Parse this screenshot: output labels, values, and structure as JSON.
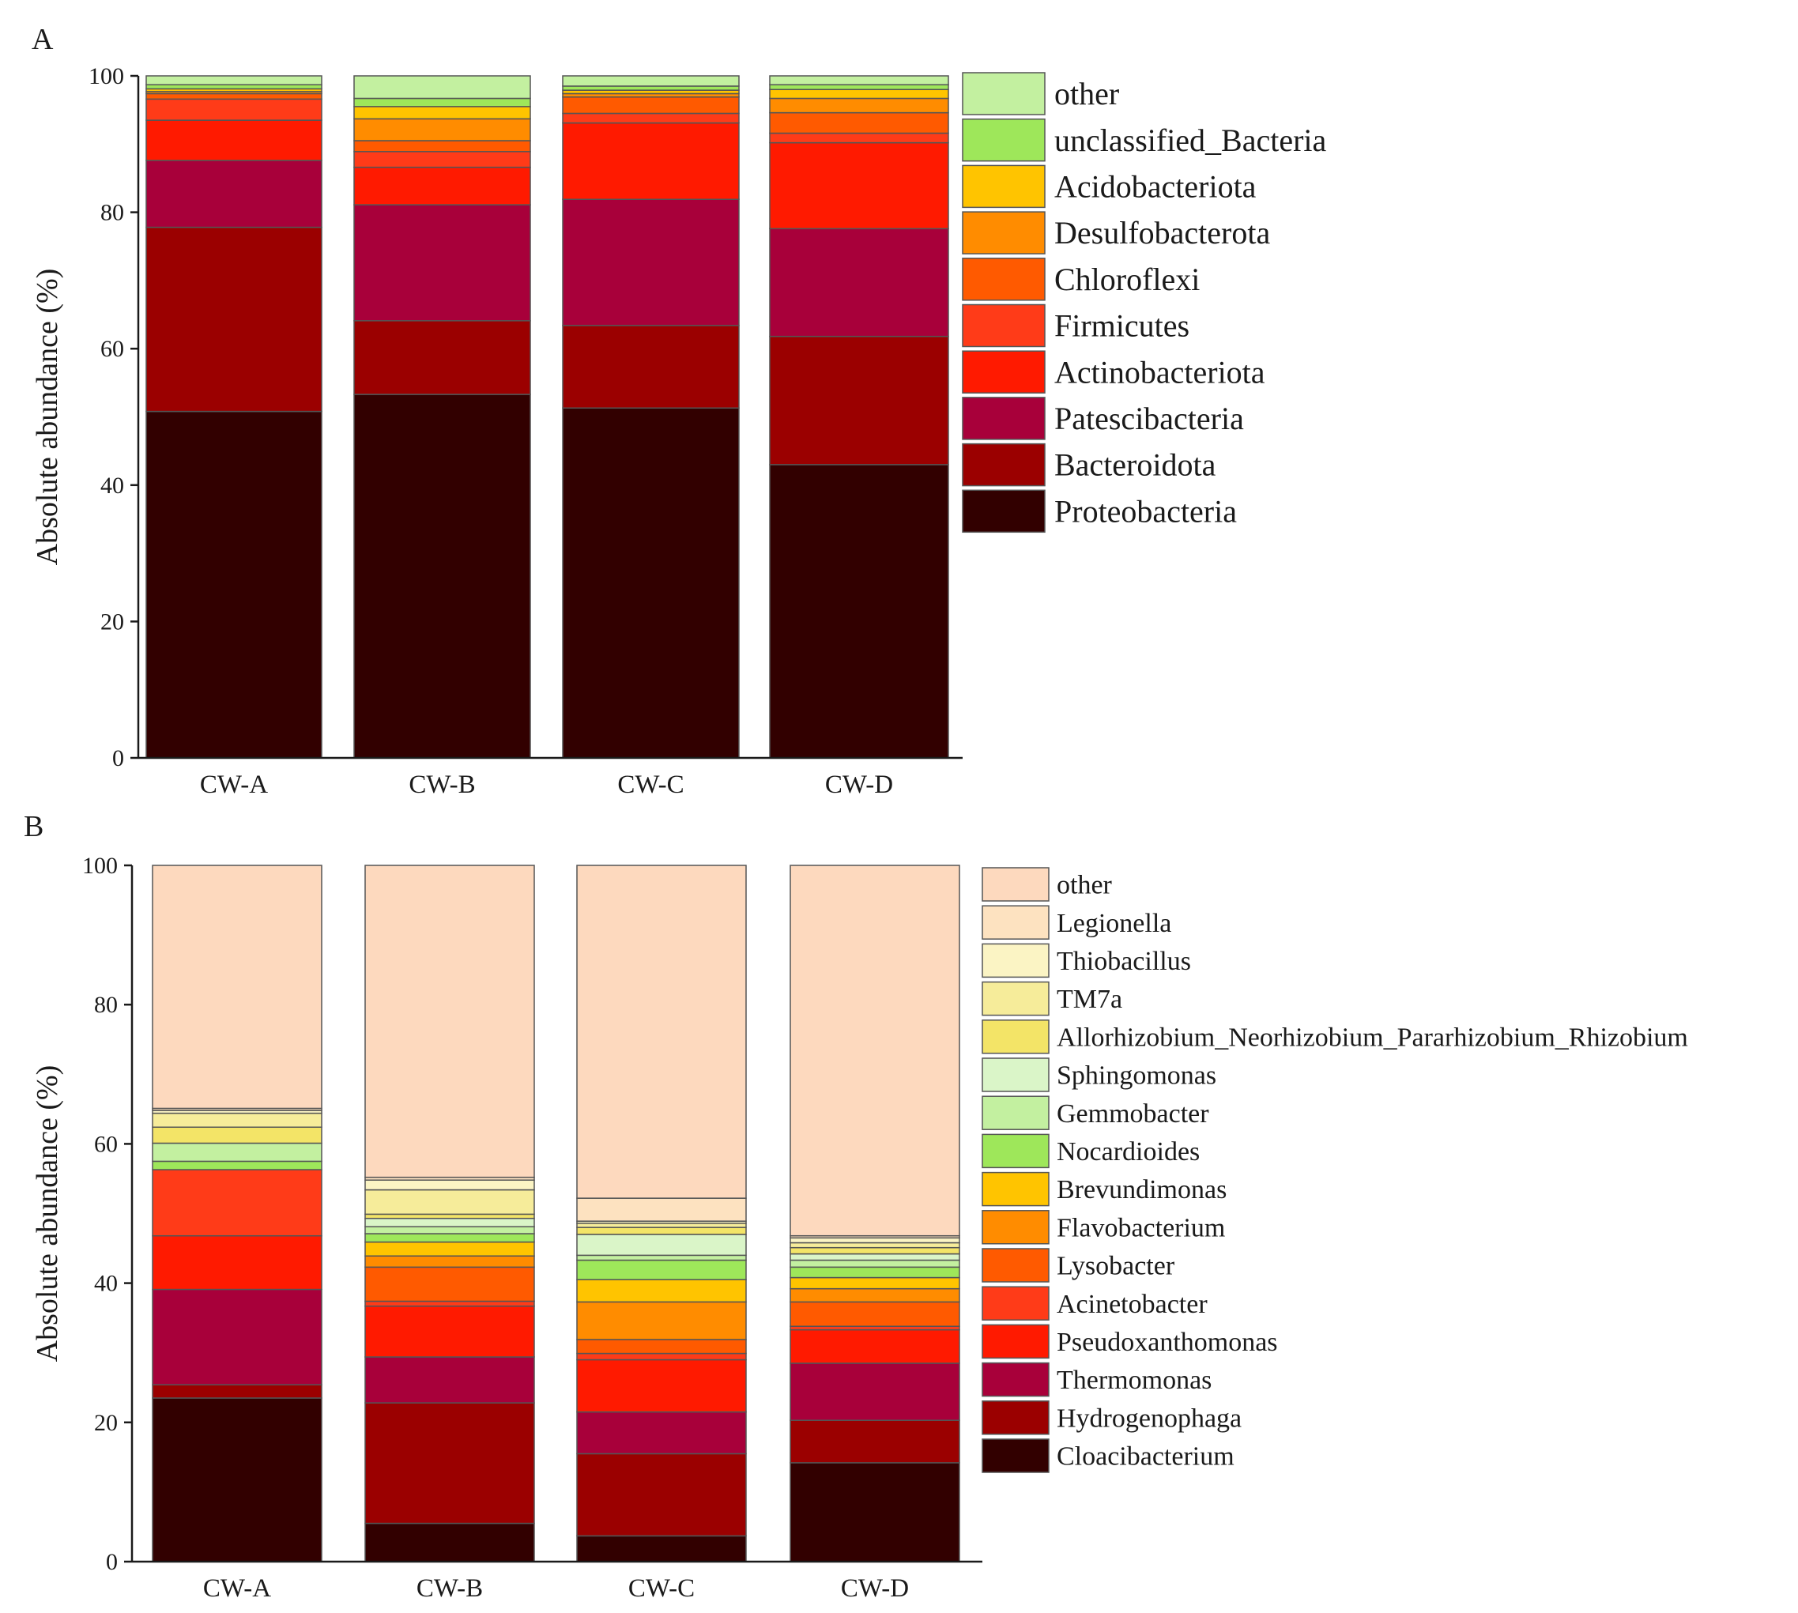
{
  "chart_data": [
    {
      "panel": "A",
      "type": "bar",
      "stacked": true,
      "title": "",
      "ylabel": "Absolute abundance (%)",
      "xlabel": "",
      "ylim": [
        0,
        100
      ],
      "yticks": [
        "0",
        "20",
        "40",
        "60",
        "80",
        "100"
      ],
      "legend_position": "right",
      "grid": false,
      "categories": [
        "CW-A",
        "CW-B",
        "CW-C",
        "CW-D"
      ],
      "series": [
        {
          "name": "Proteobacteria",
          "color": "#320000",
          "values": [
            50.8,
            53.3,
            51.3,
            43.0
          ]
        },
        {
          "name": "Bacteroidota",
          "color": "#9b0000",
          "values": [
            27.0,
            10.8,
            12.1,
            18.8
          ]
        },
        {
          "name": "Patescibacteria",
          "color": "#a8003a",
          "values": [
            9.8,
            17.0,
            18.5,
            15.8
          ]
        },
        {
          "name": "Actinobacteriota",
          "color": "#ff1a00",
          "values": [
            5.9,
            5.5,
            11.2,
            12.6
          ]
        },
        {
          "name": "Firmicutes",
          "color": "#ff3b18",
          "values": [
            3.1,
            2.3,
            1.4,
            1.4
          ]
        },
        {
          "name": "Chloroflexi",
          "color": "#ff5a00",
          "values": [
            0.8,
            1.6,
            2.4,
            3.0
          ]
        },
        {
          "name": "Desulfobacterota",
          "color": "#ff8c00",
          "values": [
            0.3,
            3.2,
            0.5,
            2.1
          ]
        },
        {
          "name": "Acidobacteriota",
          "color": "#ffc400",
          "values": [
            0.4,
            1.8,
            0.5,
            1.3
          ]
        },
        {
          "name": "unclassified_Bacteria",
          "color": "#9ee75a",
          "values": [
            0.6,
            1.2,
            0.6,
            0.7
          ]
        },
        {
          "name": "other",
          "color": "#c3f0a0",
          "values": [
            1.3,
            3.3,
            1.5,
            1.3
          ]
        }
      ]
    },
    {
      "panel": "B",
      "type": "bar",
      "stacked": true,
      "title": "",
      "ylabel": "Absolute abundance (%)",
      "xlabel": "",
      "ylim": [
        0,
        100
      ],
      "yticks": [
        "0",
        "20",
        "40",
        "60",
        "80",
        "100"
      ],
      "legend_position": "right",
      "grid": false,
      "categories": [
        "CW-A",
        "CW-B",
        "CW-C",
        "CW-D"
      ],
      "series": [
        {
          "name": "Cloacibacterium",
          "color": "#320000",
          "values": [
            23.5,
            5.5,
            3.7,
            14.2
          ]
        },
        {
          "name": "Hydrogenophaga",
          "color": "#9b0000",
          "values": [
            1.9,
            17.3,
            11.8,
            6.1
          ]
        },
        {
          "name": "Thermomonas",
          "color": "#a8003a",
          "values": [
            13.7,
            6.6,
            6.0,
            8.2
          ]
        },
        {
          "name": "Pseudoxanthomonas",
          "color": "#ff1a00",
          "values": [
            7.7,
            7.3,
            7.5,
            4.8
          ]
        },
        {
          "name": "Acinetobacter",
          "color": "#ff3b18",
          "values": [
            9.5,
            0.7,
            0.9,
            0.5
          ]
        },
        {
          "name": "Lysobacter",
          "color": "#ff5a00",
          "values": [
            0.0,
            4.9,
            2.0,
            3.5
          ]
        },
        {
          "name": "Flavobacterium",
          "color": "#ff8c00",
          "values": [
            0.0,
            1.6,
            5.4,
            1.9
          ]
        },
        {
          "name": "Brevundimonas",
          "color": "#ffc400",
          "values": [
            0.0,
            2.0,
            3.2,
            1.6
          ]
        },
        {
          "name": "Nocardioides",
          "color": "#9ee75a",
          "values": [
            1.2,
            1.2,
            2.8,
            1.5
          ]
        },
        {
          "name": "Gemmobacter",
          "color": "#c3f0a0",
          "values": [
            2.6,
            1.0,
            0.7,
            1.0
          ]
        },
        {
          "name": "Sphingomonas",
          "color": "#daf5c8",
          "values": [
            0.0,
            1.2,
            3.0,
            0.9
          ]
        },
        {
          "name": "Allorhizobium_Neorhizobium_Pararhizobium_Rhizobium",
          "color": "#f3e467",
          "values": [
            2.3,
            0.6,
            1.0,
            0.9
          ]
        },
        {
          "name": "TM7a",
          "color": "#f6ec9a",
          "values": [
            2.0,
            3.5,
            0.6,
            0.7
          ]
        },
        {
          "name": "Thiobacillus",
          "color": "#fbf4c4",
          "values": [
            0.4,
            1.4,
            0.3,
            0.7
          ]
        },
        {
          "name": "Legionella",
          "color": "#fde2c0",
          "values": [
            0.3,
            0.4,
            3.3,
            0.3
          ]
        },
        {
          "name": "other",
          "color": "#fdd9be",
          "values": [
            34.9,
            44.8,
            47.8,
            53.2
          ]
        }
      ]
    }
  ]
}
